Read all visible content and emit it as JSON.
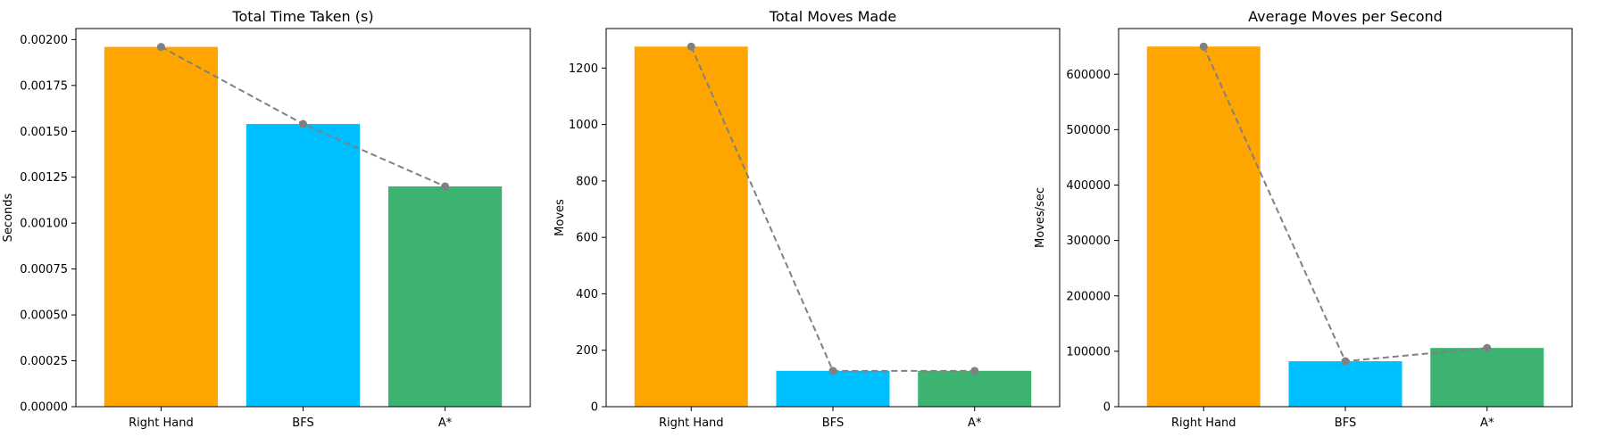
{
  "colors": {
    "bar_colors": [
      "#FFA500",
      "#00BFFF",
      "#3CB371"
    ],
    "line": "#808080"
  },
  "chart_data": [
    {
      "type": "bar",
      "title": "Total Time Taken (s)",
      "xlabel": "",
      "ylabel": "Seconds",
      "categories": [
        "Right Hand",
        "BFS",
        "A*"
      ],
      "values": [
        0.00196,
        0.00154,
        0.0012
      ],
      "ylim": [
        0,
        0.00206
      ],
      "yticks": [
        0,
        0.00025,
        0.0005,
        0.00075,
        0.001,
        0.00125,
        0.0015,
        0.00175,
        0.002
      ],
      "ytick_labels": [
        "0.00000",
        "0.00025",
        "0.00050",
        "0.00075",
        "0.00100",
        "0.00125",
        "0.00150",
        "0.00175",
        "0.00200"
      ],
      "overlay_line": "dashed gray with circle markers at bar tops",
      "grid": false
    },
    {
      "type": "bar",
      "title": "Total Moves Made",
      "xlabel": "",
      "ylabel": "Moves",
      "categories": [
        "Right Hand",
        "BFS",
        "A*"
      ],
      "values": [
        1276,
        127,
        127
      ],
      "ylim": [
        0,
        1340
      ],
      "yticks": [
        0,
        200,
        400,
        600,
        800,
        1000,
        1200
      ],
      "ytick_labels": [
        "0",
        "200",
        "400",
        "600",
        "800",
        "1000",
        "1200"
      ],
      "overlay_line": "dashed gray with circle markers at bar tops",
      "grid": false
    },
    {
      "type": "bar",
      "title": "Average Moves per Second",
      "xlabel": "",
      "ylabel": "Moves/sec",
      "categories": [
        "Right Hand",
        "BFS",
        "A*"
      ],
      "values": [
        650000,
        82000,
        106000
      ],
      "ylim": [
        0,
        682500
      ],
      "yticks": [
        0,
        100000,
        200000,
        300000,
        400000,
        500000,
        600000
      ],
      "ytick_labels": [
        "0",
        "100000",
        "200000",
        "300000",
        "400000",
        "500000",
        "600000"
      ],
      "overlay_line": "dashed gray with circle markers at bar tops",
      "grid": false
    }
  ]
}
